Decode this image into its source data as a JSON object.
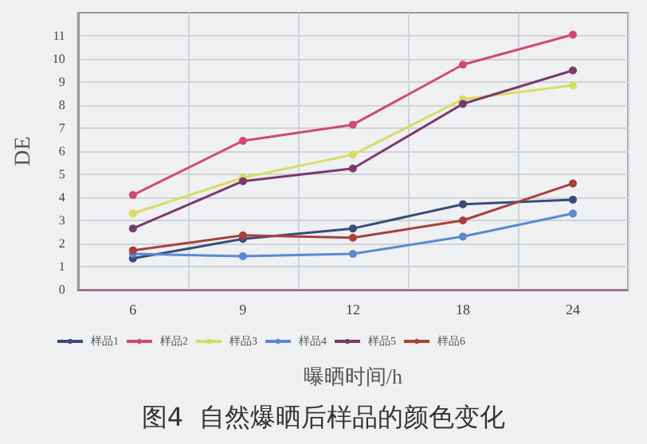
{
  "chart_data": {
    "type": "line",
    "title": "图4  自然爆晒后样品的颜色变化",
    "xlabel": "曝晒时间/h",
    "ylabel": "DE",
    "categories": [
      "6",
      "9",
      "12",
      "18",
      "24"
    ],
    "ylim": [
      0,
      12
    ],
    "yticks": [
      0,
      1,
      2,
      3,
      4,
      5,
      6,
      7,
      8,
      9,
      10,
      11
    ],
    "grid": true,
    "legend": "bottom",
    "marker": "circle",
    "line_style": "solid",
    "series": [
      {
        "name": "样品1",
        "color": "#3a4a7a",
        "values": [
          1.35,
          2.2,
          2.65,
          3.7,
          3.9
        ]
      },
      {
        "name": "样品2",
        "color": "#d04a70",
        "values": [
          4.1,
          6.45,
          7.15,
          9.75,
          11.05
        ]
      },
      {
        "name": "样品3",
        "color": "#d8dc60",
        "values": [
          3.3,
          4.85,
          5.85,
          8.25,
          8.85
        ]
      },
      {
        "name": "样品4",
        "color": "#5a8ad0",
        "values": [
          1.55,
          1.45,
          1.55,
          2.3,
          3.3
        ]
      },
      {
        "name": "样品5",
        "color": "#7a3a6a",
        "values": [
          2.65,
          4.7,
          5.25,
          8.05,
          9.5
        ]
      },
      {
        "name": "样品6",
        "color": "#a8403a",
        "values": [
          1.7,
          2.35,
          2.25,
          3.0,
          4.6
        ]
      }
    ]
  }
}
